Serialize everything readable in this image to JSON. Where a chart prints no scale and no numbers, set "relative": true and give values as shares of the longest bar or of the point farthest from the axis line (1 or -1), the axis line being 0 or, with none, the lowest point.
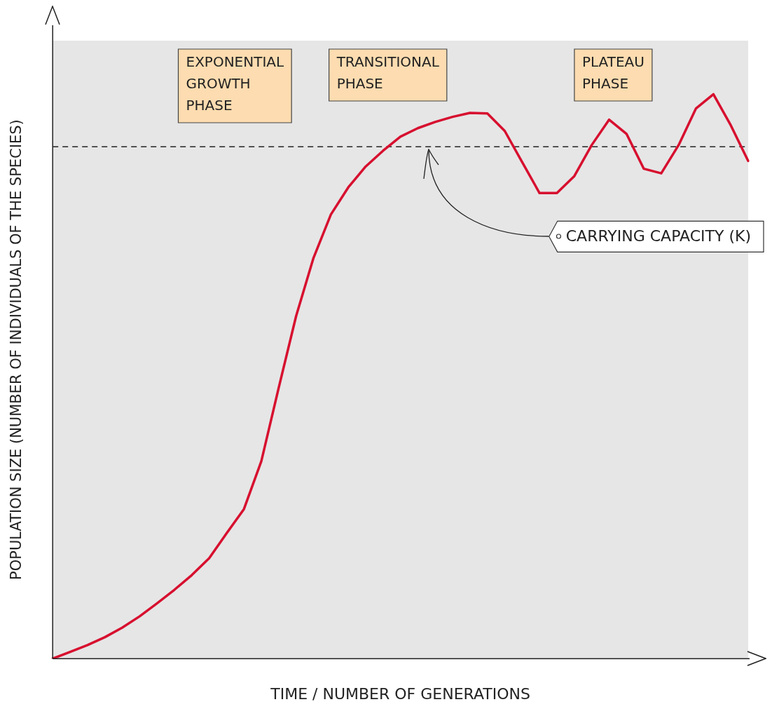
{
  "chart_data": {
    "type": "line",
    "xlabel": "TIME / NUMBER OF GENERATIONS",
    "ylabel": "POPULATION SIZE (NUMBER OF INDIVIDUALS OF THE SPECIES)",
    "relative": true,
    "categories": [
      null,
      null,
      null,
      null,
      null,
      null,
      null,
      null,
      null,
      null,
      null,
      null,
      null,
      null,
      null,
      null,
      null,
      null,
      null,
      null,
      null,
      null,
      null,
      null,
      null,
      null,
      null,
      null,
      null,
      null,
      null,
      null,
      null,
      null,
      null,
      null,
      null,
      null,
      null,
      null,
      null
    ],
    "legend": false,
    "marker": "none",
    "line_style": "solid",
    "series": [
      {
        "color": "#d7102f",
        "values": [
          0,
          0.012,
          0.024,
          0.038,
          0.055,
          0.075,
          0.098,
          0.122,
          0.148,
          0.178,
          0.222,
          0.265,
          0.35,
          0.48,
          0.607,
          0.71,
          0.787,
          0.835,
          0.872,
          0.9,
          0.925,
          0.94,
          0.951,
          0.96,
          0.967,
          0.966,
          0.935,
          0.88,
          0.825,
          0.825,
          0.855,
          0.91,
          0.955,
          0.93,
          0.868,
          0.86,
          0.91,
          0.975,
          1,
          0.945,
          0.882
        ]
      }
    ],
    "ref_lines": [
      {
        "axis": "y",
        "value": 0.907,
        "label": "CARRYING CAPACITY (K)",
        "color": "#222222",
        "line_style": "dashed"
      }
    ],
    "annotations": [
      "EXPONENTIAL\nGROWTH\nPHASE",
      "TRANSITIONAL\nPHASE",
      "PLATEAU\nPHASE"
    ]
  }
}
